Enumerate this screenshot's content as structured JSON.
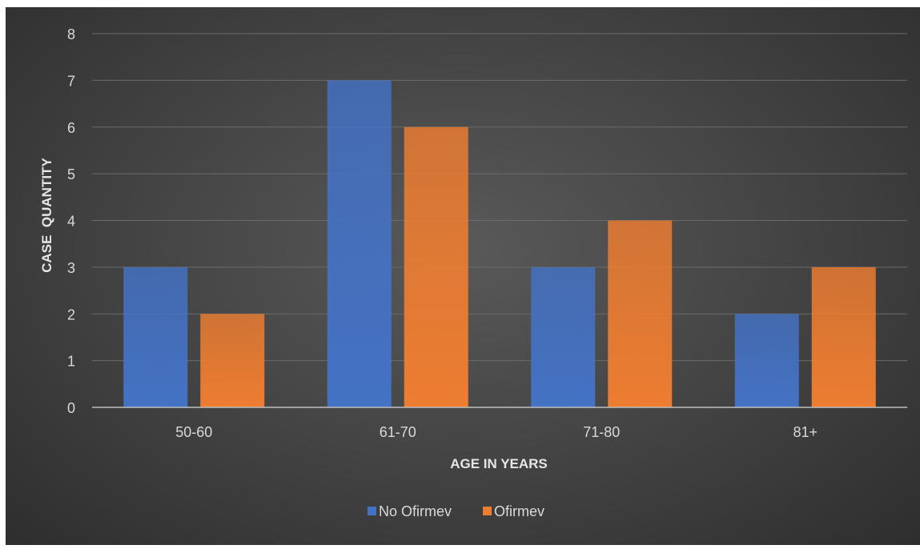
{
  "chart_data": {
    "type": "bar",
    "categories": [
      "50-60",
      "61-70",
      "71-80",
      "81+"
    ],
    "series": [
      {
        "name": "No Ofirmev",
        "values": [
          3,
          7,
          3,
          2
        ],
        "color": "#4472C4"
      },
      {
        "name": "Ofirmev",
        "values": [
          2,
          6,
          4,
          3
        ],
        "color": "#ED7D31"
      }
    ],
    "xlabel": "AGE IN YEARS",
    "ylabel": "CASE  QUANTITY",
    "ylim": [
      0,
      8
    ],
    "yticks": [
      0,
      1,
      2,
      3,
      4,
      5,
      6,
      7,
      8
    ],
    "grid": true,
    "legend": "bottom"
  }
}
